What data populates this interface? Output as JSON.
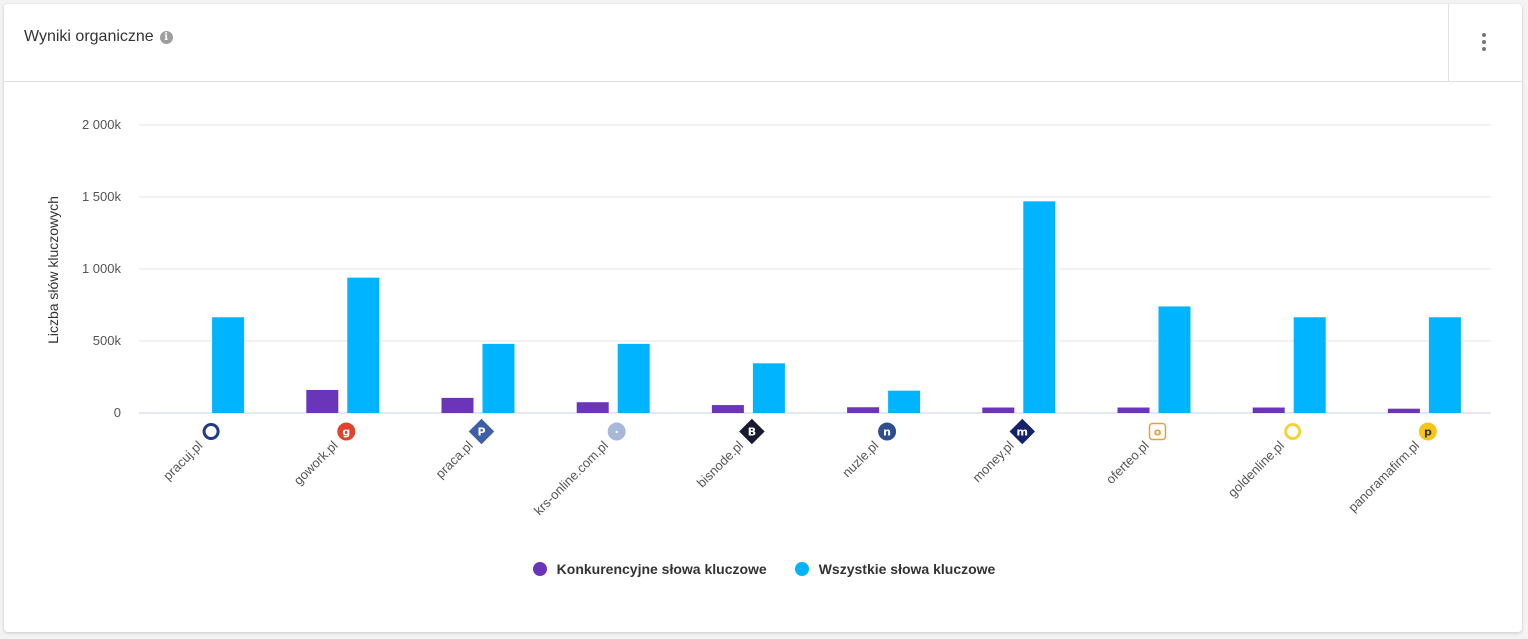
{
  "header": {
    "title": "Wyniki organiczne",
    "info_icon": "info-icon",
    "menu_icon": "kebab-menu-icon"
  },
  "chart_data": {
    "type": "bar",
    "title": "",
    "xlabel": "",
    "ylabel": "Liczba słów kluczowych",
    "ylim": [
      0,
      2000000
    ],
    "yticks": [
      0,
      500000,
      1000000,
      1500000,
      2000000
    ],
    "ytick_labels": [
      "0",
      "500k",
      "1 000k",
      "1 500k",
      "2 000k"
    ],
    "grid": true,
    "legend_position": "bottom-center",
    "categories": [
      "pracuj.pl",
      "gowork.pl",
      "praca.pl",
      "krs-online.com.pl",
      "bisnode.pl",
      "nuzle.pl",
      "money.pl",
      "oferteo.pl",
      "goldenline.pl",
      "panoramafirm.pl"
    ],
    "category_icons": [
      {
        "name": "pracuj-logo-icon",
        "shape": "ring",
        "fg": "#1f3a8a",
        "bg": "#ffffff",
        "glyph": ""
      },
      {
        "name": "gowork-logo-icon",
        "shape": "circle",
        "fg": "#ffffff",
        "bg": "#e1422b",
        "glyph": "g"
      },
      {
        "name": "praca-logo-icon",
        "shape": "diamond",
        "fg": "#ffffff",
        "bg": "#3e5fa6",
        "glyph": "P"
      },
      {
        "name": "krs-online-logo-icon",
        "shape": "circle",
        "fg": "#ffffff",
        "bg": "#a8b8d8",
        "glyph": "·"
      },
      {
        "name": "bisnode-logo-icon",
        "shape": "diamond",
        "fg": "#ffffff",
        "bg": "#1a1a2e",
        "glyph": "B"
      },
      {
        "name": "nuzle-logo-icon",
        "shape": "circle",
        "fg": "#ffffff",
        "bg": "#2e4f8f",
        "glyph": "n"
      },
      {
        "name": "money-logo-icon",
        "shape": "diamond",
        "fg": "#ffffff",
        "bg": "#14226b",
        "glyph": "m"
      },
      {
        "name": "oferteo-logo-icon",
        "shape": "square",
        "fg": "#e8a13a",
        "bg": "#ffffff",
        "glyph": "o"
      },
      {
        "name": "goldenline-logo-icon",
        "shape": "ring",
        "fg": "#f2d43a",
        "bg": "#ffffff",
        "glyph": ""
      },
      {
        "name": "panoramafirm-logo-icon",
        "shape": "circle",
        "fg": "#333333",
        "bg": "#f5c518",
        "glyph": "p"
      }
    ],
    "series": [
      {
        "name": "Konkurencyjne słowa kluczowe",
        "color": "#6a35b8",
        "values": [
          0,
          160000,
          105000,
          75000,
          55000,
          40000,
          38000,
          38000,
          38000,
          30000
        ]
      },
      {
        "name": "Wszystkie słowa kluczowe",
        "color": "#00b4ff",
        "values": [
          665000,
          940000,
          480000,
          480000,
          345000,
          155000,
          1470000,
          740000,
          665000,
          665000
        ]
      }
    ]
  }
}
